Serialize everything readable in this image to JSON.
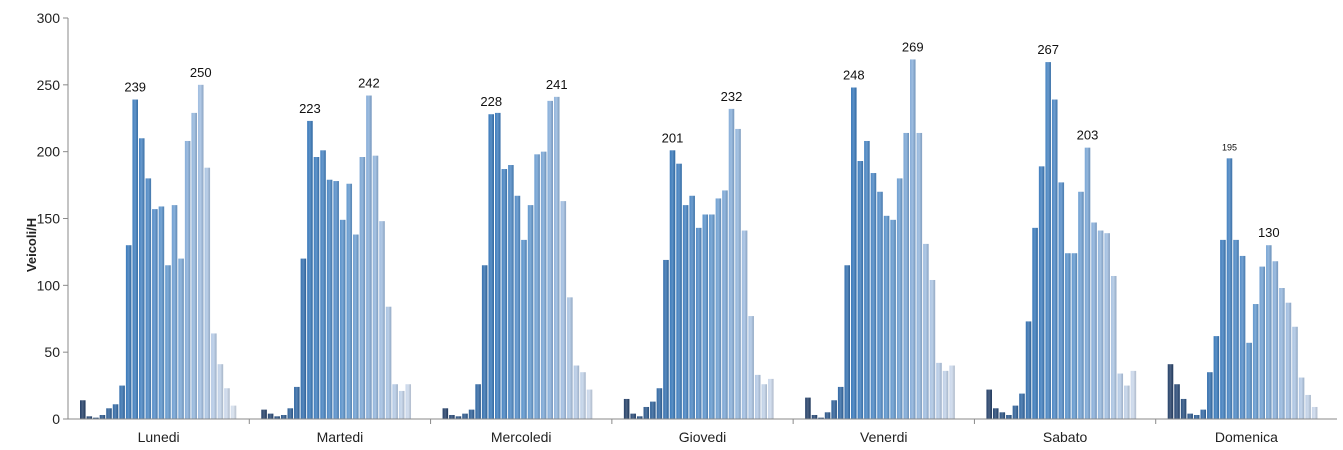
{
  "chart_data": {
    "type": "bar",
    "title": "",
    "xlabel": "",
    "ylabel": "Veicoli/H",
    "ylim": [
      0,
      300
    ],
    "yticks": [
      0,
      50,
      100,
      150,
      200,
      250,
      300
    ],
    "grid": false,
    "legend": "none",
    "days": [
      {
        "name": "Lunedi",
        "values": [
          14,
          2,
          1,
          3,
          8,
          11,
          25,
          130,
          239,
          210,
          180,
          157,
          159,
          115,
          160,
          120,
          208,
          229,
          250,
          188,
          64,
          41,
          23,
          10
        ],
        "peak_labels": [
          {
            "hour": 8,
            "text": "239"
          },
          {
            "hour": 18,
            "text": "250"
          }
        ]
      },
      {
        "name": "Martedi",
        "values": [
          7,
          4,
          2,
          3,
          8,
          24,
          120,
          223,
          196,
          201,
          179,
          178,
          149,
          176,
          138,
          196,
          242,
          197,
          148,
          84,
          26,
          21,
          26,
          0
        ],
        "peak_labels": [
          {
            "hour": 7,
            "text": "223"
          },
          {
            "hour": 16,
            "text": "242"
          }
        ]
      },
      {
        "name": "Mercoledi",
        "values": [
          8,
          3,
          2,
          4,
          7,
          26,
          115,
          228,
          229,
          187,
          190,
          167,
          134,
          160,
          198,
          200,
          238,
          241,
          163,
          91,
          40,
          35,
          22,
          0
        ],
        "peak_labels": [
          {
            "hour": 7,
            "text": "228"
          },
          {
            "hour": 17,
            "text": "241"
          }
        ]
      },
      {
        "name": "Giovedi",
        "values": [
          15,
          4,
          2,
          9,
          13,
          23,
          119,
          201,
          191,
          160,
          167,
          143,
          153,
          153,
          165,
          171,
          232,
          217,
          141,
          77,
          33,
          26,
          30,
          0
        ],
        "peak_labels": [
          {
            "hour": 7,
            "text": "201"
          },
          {
            "hour": 16,
            "text": "232"
          }
        ]
      },
      {
        "name": "Venerdi",
        "values": [
          16,
          3,
          1,
          5,
          14,
          24,
          115,
          248,
          193,
          208,
          184,
          170,
          152,
          149,
          180,
          214,
          269,
          214,
          131,
          104,
          42,
          36,
          40,
          0
        ],
        "peak_labels": [
          {
            "hour": 7,
            "text": "248"
          },
          {
            "hour": 16,
            "text": "269"
          }
        ]
      },
      {
        "name": "Sabato",
        "values": [
          22,
          8,
          5,
          3,
          10,
          19,
          73,
          143,
          189,
          267,
          239,
          177,
          124,
          124,
          170,
          203,
          147,
          141,
          139,
          107,
          34,
          25,
          36,
          0
        ],
        "peak_labels": [
          {
            "hour": 9,
            "text": "267"
          },
          {
            "hour": 15,
            "text": "203"
          }
        ]
      },
      {
        "name": "Domenica",
        "values": [
          41,
          26,
          15,
          4,
          3,
          7,
          35,
          62,
          134,
          195,
          134,
          122,
          57,
          86,
          114,
          130,
          118,
          98,
          87,
          69,
          31,
          18,
          9,
          0
        ],
        "peak_labels": [
          {
            "hour": 9,
            "text": "195",
            "small": true
          },
          {
            "hour": 15,
            "text": "130"
          }
        ]
      }
    ]
  }
}
